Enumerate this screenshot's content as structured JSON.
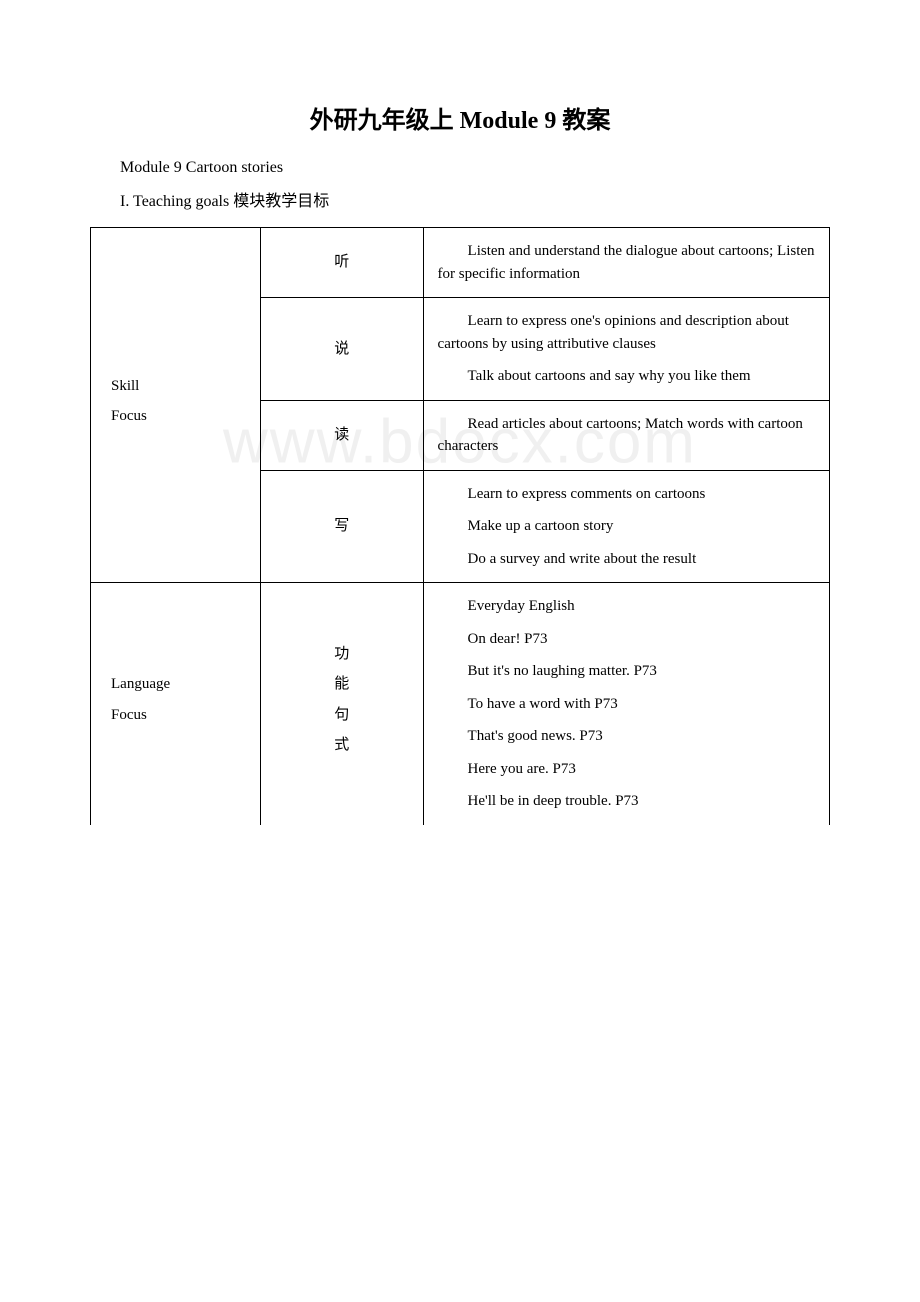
{
  "watermark": "www.bdocx.com",
  "title": "外研九年级上 Module 9 教案",
  "intro_line_1": "Module 9 Cartoon stories",
  "intro_line_2": "I. Teaching goals 模块教学目标",
  "table": {
    "section1": {
      "label_line1": "Skill",
      "label_line2": "Focus",
      "rows": [
        {
          "aspect": "听",
          "paragraphs": [
            "Listen and understand the dialogue about cartoons; Listen for specific information"
          ]
        },
        {
          "aspect": "说",
          "paragraphs": [
            "Learn to express one's opinions and description about cartoons by using attributive clauses",
            "Talk about cartoons and say why you like them"
          ]
        },
        {
          "aspect": "读",
          "paragraphs": [
            "Read articles about cartoons; Match words with cartoon characters"
          ]
        },
        {
          "aspect": "写",
          "paragraphs": [
            "Learn to express comments on cartoons",
            "Make up a cartoon story",
            "Do a survey and write about the result"
          ]
        }
      ]
    },
    "section2": {
      "label_line1": "Language",
      "label_line2": "Focus",
      "rows": [
        {
          "aspect_lines": [
            "功",
            "能",
            "句",
            "式"
          ],
          "paragraphs": [
            "Everyday English",
            "On dear! P73",
            "But it's no laughing matter. P73",
            "To have a word with P73",
            "That's good news. P73",
            "Here you are. P73",
            "He'll be in deep trouble. P73"
          ]
        }
      ]
    }
  }
}
